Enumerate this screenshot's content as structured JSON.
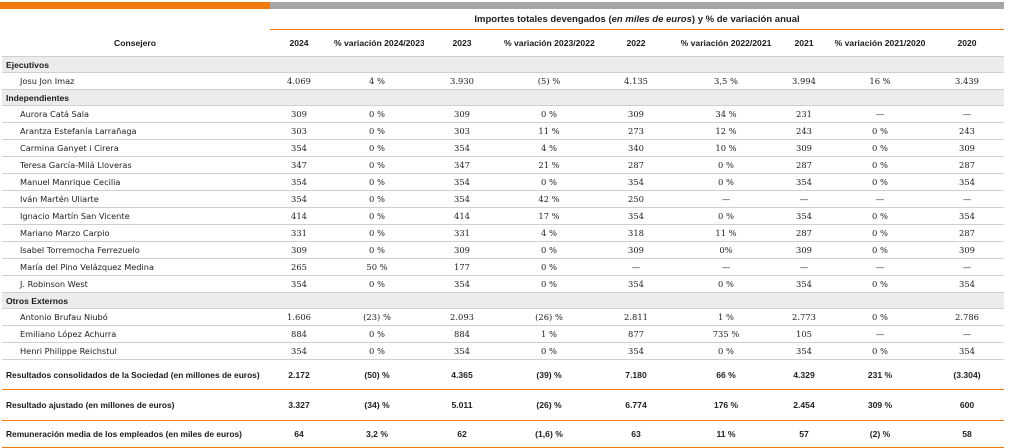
{
  "header": {
    "super_prefix": "Importes totales devengados (",
    "super_italic": "en miles de euros",
    "super_suffix": ") y % de variación anual",
    "columns": [
      "Consejero",
      "2024",
      "% variación 2024/2023",
      "2023",
      "% variación 2023/2022",
      "2022",
      "% variación 2022/2021",
      "2021",
      "% variación 2021/2020",
      "2020"
    ]
  },
  "sections": [
    {
      "title": "Ejecutivos",
      "rows": [
        {
          "cells": [
            "Josu Jon Imaz",
            "4.069",
            "4 %",
            "3.930",
            "(5) %",
            "4.135",
            "3,5 %",
            "3.994",
            "16 %",
            "3.439"
          ]
        }
      ]
    },
    {
      "title": "Independientes",
      "rows": [
        {
          "cells": [
            "Aurora Catá Sala",
            "309",
            "0 %",
            "309",
            "0 %",
            "309",
            "34 %",
            "231",
            "—",
            "—"
          ]
        },
        {
          "cells": [
            "Arantza Estefanía Larrañaga",
            "303",
            "0 %",
            "303",
            "11 %",
            "273",
            "12 %",
            "243",
            "0 %",
            "243"
          ]
        },
        {
          "cells": [
            "Carmina Ganyet i Cirera",
            "354",
            "0 %",
            "354",
            "4 %",
            "340",
            "10 %",
            "309",
            "0 %",
            "309"
          ]
        },
        {
          "cells": [
            "Teresa García-Milá Lloveras",
            "347",
            "0 %",
            "347",
            "21 %",
            "287",
            "0 %",
            "287",
            "0 %",
            "287"
          ]
        },
        {
          "cells": [
            "Manuel Manrique Cecilia",
            "354",
            "0 %",
            "354",
            "0 %",
            "354",
            "0 %",
            "354",
            "0 %",
            "354"
          ]
        },
        {
          "cells": [
            "Iván Martén Uliarte",
            "354",
            "0 %",
            "354",
            "42 %",
            "250",
            "—",
            "—",
            "—",
            "—"
          ]
        },
        {
          "cells": [
            "Ignacio Martín San Vicente",
            "414",
            "0 %",
            "414",
            "17 %",
            "354",
            "0 %",
            "354",
            "0 %",
            "354"
          ]
        },
        {
          "cells": [
            "Mariano Marzo Carpio",
            "331",
            "0 %",
            "331",
            "4 %",
            "318",
            "11 %",
            "287",
            "0 %",
            "287"
          ]
        },
        {
          "cells": [
            "Isabel Torremocha Ferrezuelo",
            "309",
            "0 %",
            "309",
            "0 %",
            "309",
            "0%",
            "309",
            "0 %",
            "309"
          ]
        },
        {
          "cells": [
            "María del Pino Velázquez Medina",
            "265",
            "50 %",
            "177",
            "0 %",
            "—",
            "—",
            "—",
            "—",
            "—"
          ]
        },
        {
          "cells": [
            "J. Robinson West",
            "354",
            "0 %",
            "354",
            "0 %",
            "354",
            "0 %",
            "354",
            "0 %",
            "354"
          ]
        }
      ]
    },
    {
      "title": "Otros Externos",
      "rows": [
        {
          "cells": [
            "Antonio Brufau Niubó",
            "1.606",
            "(23) %",
            "2.093",
            "(26) %",
            "2.811",
            "1 %",
            "2.773",
            "0 %",
            "2.786"
          ]
        },
        {
          "cells": [
            "Emiliano López Achurra",
            "884",
            "0 %",
            "884",
            "1 %",
            "877",
            "735 %",
            "105",
            "—",
            "—"
          ]
        },
        {
          "cells": [
            "Henri Philippe Reichstul",
            "354",
            "0 %",
            "354",
            "0 %",
            "354",
            "0 %",
            "354",
            "0 %",
            "354"
          ]
        }
      ]
    }
  ],
  "summary": [
    {
      "cells": [
        "Resultados consolidados de la Sociedad (en millones de euros)",
        "2.172",
        "(50) %",
        "4.365",
        "(39) %",
        "7.180",
        "66 %",
        "4.329",
        "231 %",
        "(3.304)"
      ]
    },
    {
      "cells": [
        "Resultado ajustado (en millones de euros)",
        "3.327",
        "(34) %",
        "5.011",
        "(26) %",
        "6.774",
        "176 %",
        "2.454",
        "309 %",
        "600"
      ]
    },
    {
      "cells": [
        "Remuneración media de los empleados (en miles de euros)",
        "64",
        "3,2 %",
        "62",
        "(1,6) %",
        "63",
        "11 %",
        "57",
        "(2) %",
        "58"
      ]
    }
  ],
  "colors": {
    "accent": "#f07a10",
    "bar_grey": "#a6a6a6",
    "section_bg": "#ececec"
  }
}
